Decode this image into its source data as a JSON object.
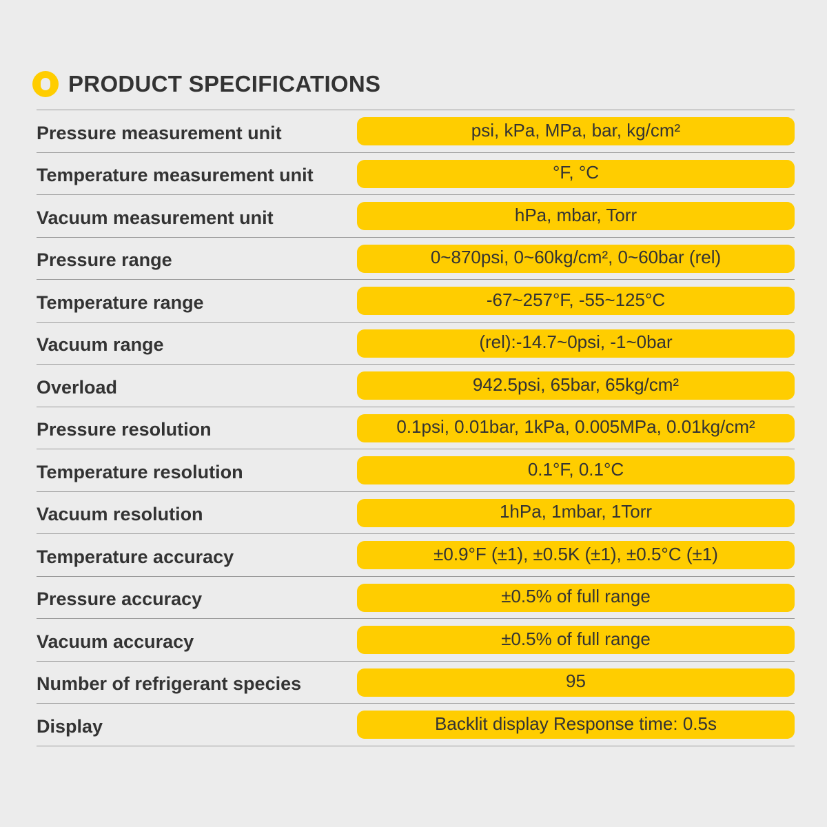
{
  "header": {
    "title": "PRODUCT SPECIFICATIONS",
    "icon": "ring-icon",
    "accent_color": "#ffcd00"
  },
  "specs": [
    {
      "label": "Pressure measurement unit",
      "value": "psi, kPa, MPa, bar, kg/cm²"
    },
    {
      "label": "Temperature measurement unit",
      "value": "°F, °C"
    },
    {
      "label": "Vacuum measurement unit",
      "value": "hPa, mbar, Torr"
    },
    {
      "label": "Pressure range",
      "value": "0~870psi, 0~60kg/cm², 0~60bar (rel)"
    },
    {
      "label": "Temperature range",
      "value": "-67~257°F, -55~125°C"
    },
    {
      "label": "Vacuum range",
      "value": "(rel):-14.7~0psi, -1~0bar"
    },
    {
      "label": "Overload",
      "value": "942.5psi, 65bar, 65kg/cm²"
    },
    {
      "label": "Pressure resolution",
      "value": "0.1psi, 0.01bar, 1kPa, 0.005MPa, 0.01kg/cm²"
    },
    {
      "label": "Temperature resolution",
      "value": "0.1°F, 0.1°C"
    },
    {
      "label": "Vacuum resolution",
      "value": "1hPa, 1mbar, 1Torr"
    },
    {
      "label": "Temperature accuracy",
      "value": "±0.9°F (±1), ±0.5K (±1), ±0.5°C (±1)"
    },
    {
      "label": "Pressure accuracy",
      "value": "±0.5% of full range"
    },
    {
      "label": "Vacuum accuracy",
      "value": "±0.5% of full range"
    },
    {
      "label": "Number of refrigerant species",
      "value": "95"
    },
    {
      "label": "Display",
      "value": "Backlit display Response time:  0.5s"
    }
  ]
}
